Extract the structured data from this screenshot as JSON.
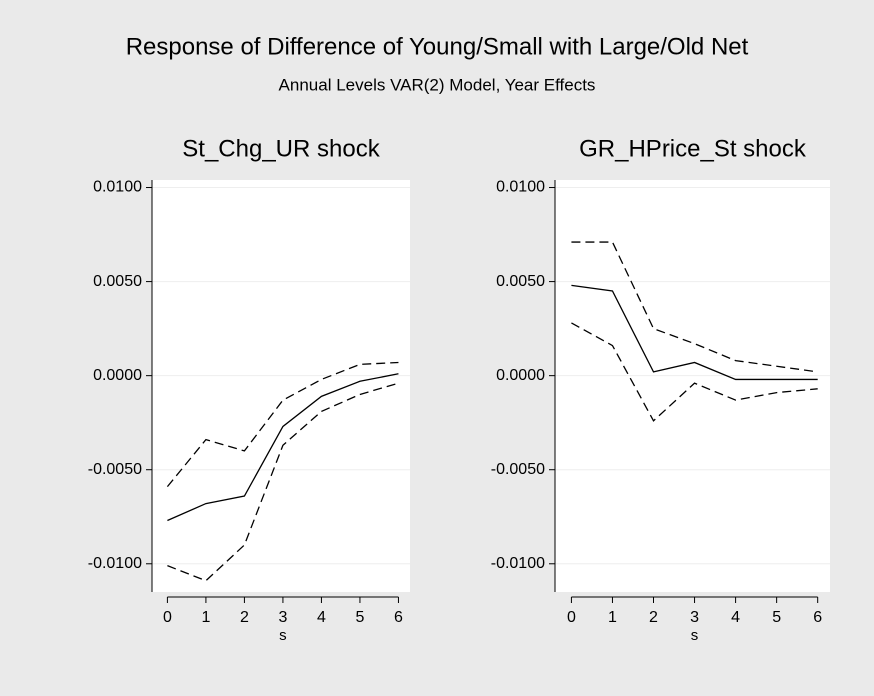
{
  "title": "Response of Difference of Young/Small with Large/Old Net",
  "subtitle": "Annual Levels VAR(2) Model, Year Effects",
  "chart_data": [
    {
      "type": "line",
      "title": "St_Chg_UR shock",
      "xlabel": "s",
      "x": [
        0,
        1,
        2,
        3,
        4,
        5,
        6
      ],
      "xlim": [
        -0.4,
        6.3
      ],
      "xticks": [
        0,
        1,
        2,
        3,
        4,
        5,
        6
      ],
      "ylim": [
        -0.0115,
        0.0104
      ],
      "yticks": [
        {
          "value": -0.01,
          "label": "-0.0100"
        },
        {
          "value": -0.005,
          "label": "-0.0050"
        },
        {
          "value": 0,
          "label": "0.0000"
        },
        {
          "value": 0.005,
          "label": "0.0050"
        },
        {
          "value": 0.01,
          "label": "0.0100"
        }
      ],
      "grid": true,
      "series": [
        {
          "style": "solid",
          "color": "#000000",
          "values": [
            -0.0077,
            -0.0068,
            -0.0064,
            -0.0027,
            -0.0011,
            -0.0003,
            0.0001
          ]
        },
        {
          "style": "dashed",
          "color": "#000000",
          "values": [
            -0.0059,
            -0.0034,
            -0.004,
            -0.0013,
            -0.0002,
            0.0006,
            0.0007
          ]
        },
        {
          "style": "dashed",
          "color": "#000000",
          "values": [
            -0.0101,
            -0.0109,
            -0.009,
            -0.0037,
            -0.0019,
            -0.001,
            -0.0004
          ]
        }
      ]
    },
    {
      "type": "line",
      "title": "GR_HPrice_St shock",
      "xlabel": "s",
      "x": [
        0,
        1,
        2,
        3,
        4,
        5,
        6
      ],
      "xlim": [
        -0.4,
        6.3
      ],
      "xticks": [
        0,
        1,
        2,
        3,
        4,
        5,
        6
      ],
      "ylim": [
        -0.0115,
        0.0104
      ],
      "yticks": [
        {
          "value": -0.01,
          "label": "-0.0100"
        },
        {
          "value": -0.005,
          "label": "-0.0050"
        },
        {
          "value": 0,
          "label": "0.0000"
        },
        {
          "value": 0.005,
          "label": "0.0050"
        },
        {
          "value": 0.01,
          "label": "0.0100"
        }
      ],
      "grid": true,
      "series": [
        {
          "style": "solid",
          "color": "#000000",
          "values": [
            0.0048,
            0.0045,
            0.0002,
            0.0007,
            -0.0002,
            -0.0002,
            -0.0002
          ]
        },
        {
          "style": "dashed",
          "color": "#000000",
          "values": [
            0.0071,
            0.0071,
            0.0025,
            0.0017,
            0.0008,
            0.0005,
            0.0002
          ]
        },
        {
          "style": "dashed",
          "color": "#000000",
          "values": [
            0.0028,
            0.0016,
            -0.0024,
            -0.0004,
            -0.0013,
            -0.0009,
            -0.0007
          ]
        }
      ]
    }
  ]
}
